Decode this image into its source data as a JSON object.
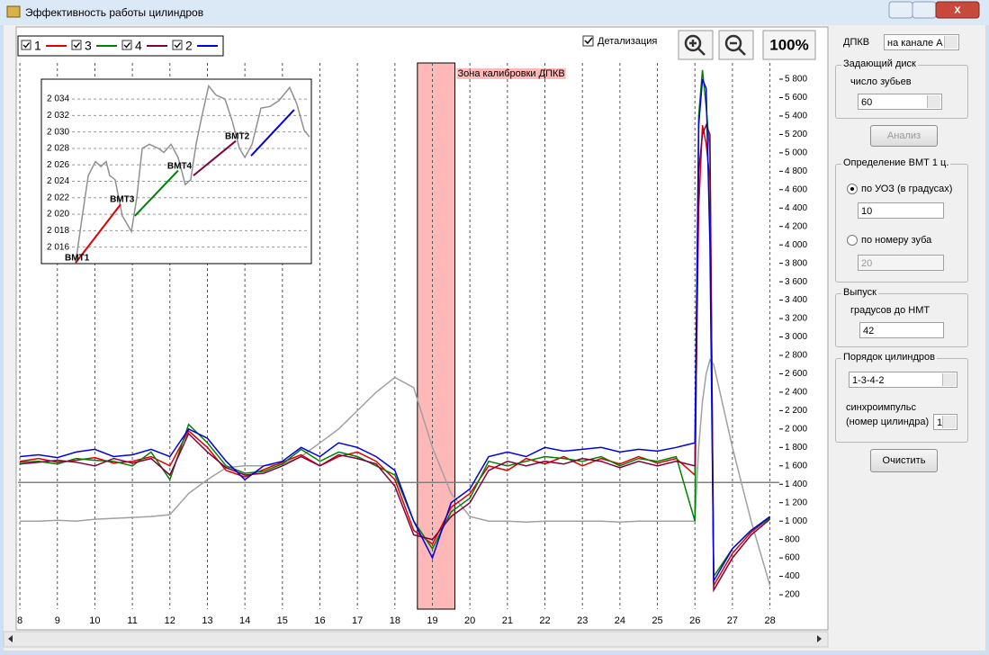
{
  "window": {
    "title": "Эффективность работы цилиндров"
  },
  "toolbar": {
    "detail": "Детализация",
    "zoom": "100%"
  },
  "panel": {
    "dpkv_label": "ДПКВ",
    "dpkv_channel": "на канале А",
    "disk_group": "Задающий диск",
    "teeth_label": "число зубьев",
    "teeth": "60",
    "analyze": "Анализ",
    "tdc_group": "Определение ВМТ 1 ц.",
    "tdc_by_angle": "по УОЗ (в градусах)",
    "angle": "10",
    "tdc_by_tooth": "по номеру зуба",
    "tooth": "20",
    "exhaust_group": "Выпуск",
    "exhaust_label": "градусов до НМТ",
    "exhaust": "42",
    "order_group": "Порядок цилиндров",
    "order": "1-3-4-2",
    "sync_label_1": "синхроимпульс",
    "sync_label_2": "(номер цилиндра)",
    "sync": "1",
    "clear": "Очистить"
  },
  "chart_data": [
    {
      "type": "line",
      "x": [
        8,
        8.5,
        9,
        9.5,
        10,
        10.5,
        11,
        11.5,
        12,
        12.5,
        13,
        13.5,
        14,
        14.5,
        15,
        15.5,
        16,
        16.5,
        17,
        17.5,
        18,
        18.5,
        19,
        19.5,
        20,
        20.5,
        21,
        21.5,
        22,
        22.5,
        23,
        23.5,
        24,
        24.5,
        25,
        25.5,
        26,
        26.1,
        26.2,
        26.3,
        26.4,
        26.5,
        27,
        27.5,
        28
      ],
      "series": [
        {
          "color": "#a0a0a0",
          "values": [
            1000,
            1000,
            1010,
            1000,
            1020,
            1030,
            1040,
            1050,
            1070,
            1300,
            1450,
            1580,
            1600,
            1600,
            1620,
            1700,
            1850,
            2000,
            2200,
            2400,
            2560,
            2450,
            1800,
            1300,
            1050,
            1000,
            1000,
            990,
            1000,
            1000,
            1000,
            1000,
            990,
            1000,
            1000,
            1000,
            1000,
            1800,
            2300,
            2600,
            2750,
            2700,
            1800,
            1000,
            300
          ]
        },
        {
          "name": "1",
          "color": "#e00000",
          "values": [
            1650,
            1680,
            1640,
            1660,
            1690,
            1630,
            1650,
            1700,
            1600,
            1980,
            1800,
            1550,
            1480,
            1560,
            1640,
            1720,
            1600,
            1700,
            1750,
            1650,
            1450,
            900,
            750,
            1150,
            1300,
            1600,
            1550,
            1680,
            1620,
            1700,
            1600,
            1680,
            1620,
            1700,
            1630,
            1680,
            1500,
            4400,
            5300,
            5100,
            4700,
            300,
            650,
            880,
            1040
          ]
        },
        {
          "name": "3",
          "color": "#008000",
          "values": [
            1640,
            1650,
            1620,
            1680,
            1660,
            1650,
            1600,
            1750,
            1450,
            2050,
            1850,
            1600,
            1520,
            1540,
            1620,
            1780,
            1650,
            1750,
            1700,
            1600,
            1500,
            1000,
            700,
            1100,
            1250,
            1650,
            1600,
            1650,
            1700,
            1680,
            1650,
            1700,
            1600,
            1680,
            1650,
            1700,
            1000,
            5400,
            5900,
            5500,
            5000,
            400,
            700,
            900,
            1030
          ]
        },
        {
          "name": "4",
          "color": "#800040",
          "values": [
            1620,
            1640,
            1660,
            1640,
            1600,
            1680,
            1630,
            1680,
            1500,
            1950,
            1750,
            1580,
            1500,
            1520,
            1600,
            1700,
            1600,
            1720,
            1680,
            1620,
            1380,
            850,
            800,
            1050,
            1200,
            1550,
            1650,
            1600,
            1650,
            1620,
            1680,
            1650,
            1580,
            1650,
            1600,
            1650,
            1600,
            4800,
            5200,
            5300,
            5200,
            250,
            600,
            850,
            1020
          ]
        },
        {
          "name": "2",
          "color": "#0000e0",
          "values": [
            1700,
            1720,
            1690,
            1750,
            1780,
            1700,
            1720,
            1780,
            1700,
            2000,
            1900,
            1650,
            1450,
            1600,
            1650,
            1800,
            1700,
            1850,
            1800,
            1700,
            1550,
            1000,
            600,
            1200,
            1350,
            1700,
            1750,
            1700,
            1800,
            1760,
            1780,
            1800,
            1750,
            1780,
            1760,
            1800,
            1850,
            5300,
            5800,
            5700,
            4000,
            350,
            700,
            900,
            1050
          ]
        }
      ],
      "xlim": [
        7.95,
        28.25
      ],
      "ylim": [
        44,
        5976
      ],
      "xticks": [
        8,
        9,
        10,
        11,
        12,
        13,
        14,
        15,
        16,
        17,
        18,
        19,
        20,
        21,
        22,
        23,
        24,
        25,
        26,
        27,
        28
      ],
      "yticks": [
        200,
        400,
        600,
        800,
        {
          "value": 1000,
          "label": "1 000"
        },
        {
          "value": 1200,
          "label": "1 200"
        },
        {
          "value": 1400,
          "label": "1 400"
        },
        {
          "value": 1600,
          "label": "1 600"
        },
        {
          "value": 1800,
          "label": "1 800"
        },
        {
          "value": 2000,
          "label": "2 000"
        },
        {
          "value": 2200,
          "label": "2 200"
        },
        {
          "value": 2400,
          "label": "2 400"
        },
        {
          "value": 2600,
          "label": "2 600"
        },
        {
          "value": 2800,
          "label": "2 800"
        },
        {
          "value": 3000,
          "label": "3 000"
        },
        {
          "value": 3200,
          "label": "3 200"
        },
        {
          "value": 3400,
          "label": "3 400"
        },
        {
          "value": 3600,
          "label": "3 600"
        },
        {
          "value": 3800,
          "label": "3 800"
        },
        {
          "value": 4000,
          "label": "4 000"
        },
        {
          "value": 4200,
          "label": "4 200"
        },
        {
          "value": 4400,
          "label": "4 400"
        },
        {
          "value": 4600,
          "label": "4 600"
        },
        {
          "value": 4800,
          "label": "4 800"
        },
        {
          "value": 5000,
          "label": "5 000"
        },
        {
          "value": 5200,
          "label": "5 200"
        },
        {
          "value": 5400,
          "label": "5 400"
        },
        {
          "value": 5600,
          "label": "5 600"
        },
        {
          "value": 5800,
          "label": "5 800"
        }
      ],
      "grid": "x",
      "highlight": {
        "x": [
          18.6,
          19.6
        ],
        "label": "Зона калибровки ДПКВ",
        "color": "#ffb8b8"
      },
      "reference_line": {
        "y": 1420,
        "color": "#808080"
      }
    },
    {
      "type": "line",
      "series": [
        {
          "color": "#909090",
          "x": [
            12.1,
            14.1,
            16.8,
            19.5,
            21.5,
            23.5,
            24.8,
            26.8,
            29.5,
            32.9,
            34.9,
            36.9,
            39.6,
            43.0,
            45.0,
            47.7,
            50.3,
            53.0,
            55.0,
            57.0,
            59.1,
            61.7,
            64.4,
            67.8,
            70.5,
            73.2,
            75.2,
            77.9,
            81.2,
            84.6,
            87.9,
            91.9,
            94.6,
            97.3,
            99.3
          ],
          "values": [
            2014.1,
            2018.7,
            2024.7,
            2026.4,
            2025.8,
            2026.4,
            2024.7,
            2024.2,
            2019.8,
            2017.9,
            2022.0,
            2028.0,
            2028.5,
            2028.0,
            2027.5,
            2028.5,
            2026.9,
            2023.6,
            2024.2,
            2028.5,
            2031.8,
            2035.6,
            2034.5,
            2034.0,
            2031.3,
            2028.0,
            2026.9,
            2028.5,
            2032.9,
            2033.1,
            2033.8,
            2035.4,
            2033.4,
            2030.2,
            2029.4
          ]
        },
        {
          "color": "#e00000",
          "x": [
            12.1,
            28.9
          ],
          "values": [
            2014.1,
            2021.2
          ]
        },
        {
          "color": "#008000",
          "x": [
            34.2,
            50.3
          ],
          "values": [
            2019.8,
            2025.3
          ]
        },
        {
          "color": "#800040",
          "x": [
            56.0,
            71.8
          ],
          "values": [
            2024.7,
            2028.9
          ]
        },
        {
          "color": "#0000e0",
          "x": [
            77.5,
            93.6
          ],
          "values": [
            2027.1,
            2032.7
          ]
        }
      ],
      "annotations": [
        {
          "text": "BMT1",
          "x": 12.1,
          "y": 2014.1
        },
        {
          "text": "BMT3",
          "x": 28.9,
          "y": 2021.2
        },
        {
          "text": "BMT4",
          "x": 50.3,
          "y": 2025.3
        },
        {
          "text": "BMT2",
          "x": 71.8,
          "y": 2028.9
        }
      ],
      "xlim": [
        0,
        100
      ],
      "ylim": [
        2014.1,
        2036.2
      ],
      "yticks": [
        {
          "value": 2016,
          "label": "2 016"
        },
        {
          "value": 2018,
          "label": "2 018"
        },
        {
          "value": 2020,
          "label": "2 020"
        },
        {
          "value": 2022,
          "label": "2 022"
        },
        {
          "value": 2024,
          "label": "2 024"
        },
        {
          "value": 2026,
          "label": "2 026"
        },
        {
          "value": 2028,
          "label": "2 028"
        },
        {
          "value": 2030,
          "label": "2 030"
        },
        {
          "value": 2032,
          "label": "2 032"
        },
        {
          "value": 2034,
          "label": "2 034"
        }
      ],
      "grid": "y"
    }
  ]
}
